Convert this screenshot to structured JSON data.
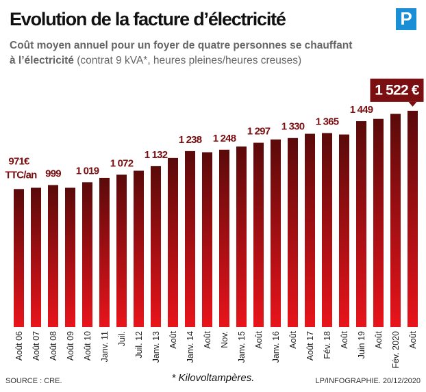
{
  "chart_data": {
    "type": "bar",
    "title": "Evolution de la facture d’électricité",
    "logo": "P",
    "subtitle": [
      "Coût moyen annuel pour un foyer de quatre personnes se chauffant",
      "à l’électricité"
    ],
    "subtitle_note": "(contrat 9 kVA*, heures pleines/heures creuses)",
    "unit_note": "TTC/an",
    "categories": [
      "Août 06",
      "Août 07",
      "Août 08",
      "Août 09",
      "Août 10",
      "Janv. 11",
      "Juil.",
      "Juil. 12",
      "Janv. 13",
      "Août",
      "Janv. 14",
      "Août",
      "Nov.",
      "Janv. 15",
      "Août",
      "Janv. 16",
      "Août",
      "Août 17",
      "Fév. 18",
      "Août",
      "Juin 19",
      "Août",
      "Fév. 2020",
      "Août"
    ],
    "values": [
      971,
      980,
      999,
      980,
      1019,
      1050,
      1072,
      1100,
      1132,
      1190,
      1238,
      1230,
      1248,
      1270,
      1297,
      1320,
      1330,
      1360,
      1365,
      1355,
      1449,
      1465,
      1500,
      1522
    ],
    "value_labels": [
      "971€",
      null,
      "999",
      null,
      "1 019",
      null,
      "1 072",
      null,
      "1 132",
      null,
      "1 238",
      null,
      "1 248",
      null,
      "1 297",
      null,
      "1 330",
      null,
      "1 365",
      null,
      "1 449",
      null,
      null,
      "1 522 €"
    ],
    "color_top": "#5a0a0a",
    "color_bottom": "#e8141b",
    "ylim": [
      0,
      1560
    ],
    "source": "SOURCE : CRE.",
    "footnote": "* Kilovoltampères.",
    "credit": "LP/INFOGRAPHIE.  20/12/2020"
  }
}
